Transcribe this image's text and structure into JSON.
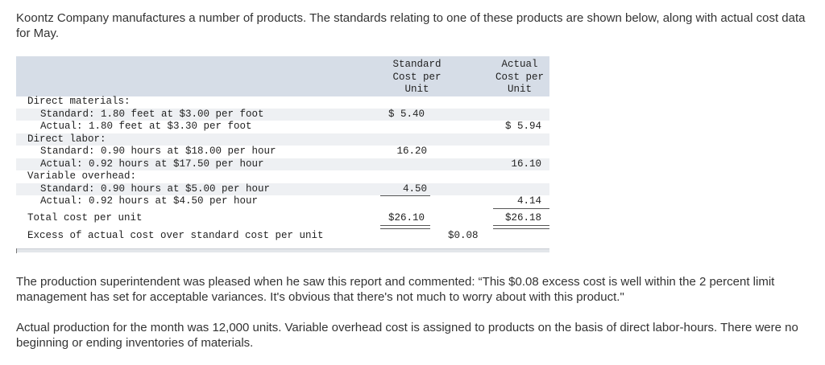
{
  "intro": "Koontz Company manufactures a number of products. The standards relating to one of these products are shown below, along with actual cost data for May.",
  "table": {
    "header_standard": "Standard\nCost per\nUnit",
    "header_actual": "Actual\nCost per\nUnit",
    "rows": {
      "dm_heading": "Direct materials:",
      "dm_standard": "Standard: 1.80 feet at $3.00 per foot",
      "dm_standard_value": "$ 5.40",
      "dm_actual": "Actual: 1.80 feet at $3.30 per foot",
      "dm_actual_value": "$ 5.94",
      "dl_heading": "Direct labor:",
      "dl_standard": "Standard: 0.90 hours at $18.00 per hour",
      "dl_standard_value": "16.20",
      "dl_actual": "Actual: 0.92 hours at $17.50 per hour",
      "dl_actual_value": "16.10",
      "vo_heading": "Variable overhead:",
      "vo_standard": "Standard: 0.90 hours at $5.00 per hour",
      "vo_standard_value": "4.50",
      "vo_actual": "Actual: 0.92 hours at $4.50 per hour",
      "vo_actual_value": "4.14",
      "total_label": "Total cost per unit",
      "total_standard": "$26.10",
      "total_actual": "$26.18",
      "excess_label": "Excess of actual cost over standard cost per unit",
      "excess_value": "$0.08"
    }
  },
  "paragraph1": "The production superintendent was pleased when he saw this report and commented: “This $0.08 excess cost is well within the 2 percent limit management has set for acceptable variances. It's obvious that there's not much to worry about with this product.\"",
  "paragraph2": "Actual production for the month was 12,000 units. Variable overhead cost is assigned to products on the basis of direct labor-hours. There were no beginning or ending inventories of materials."
}
